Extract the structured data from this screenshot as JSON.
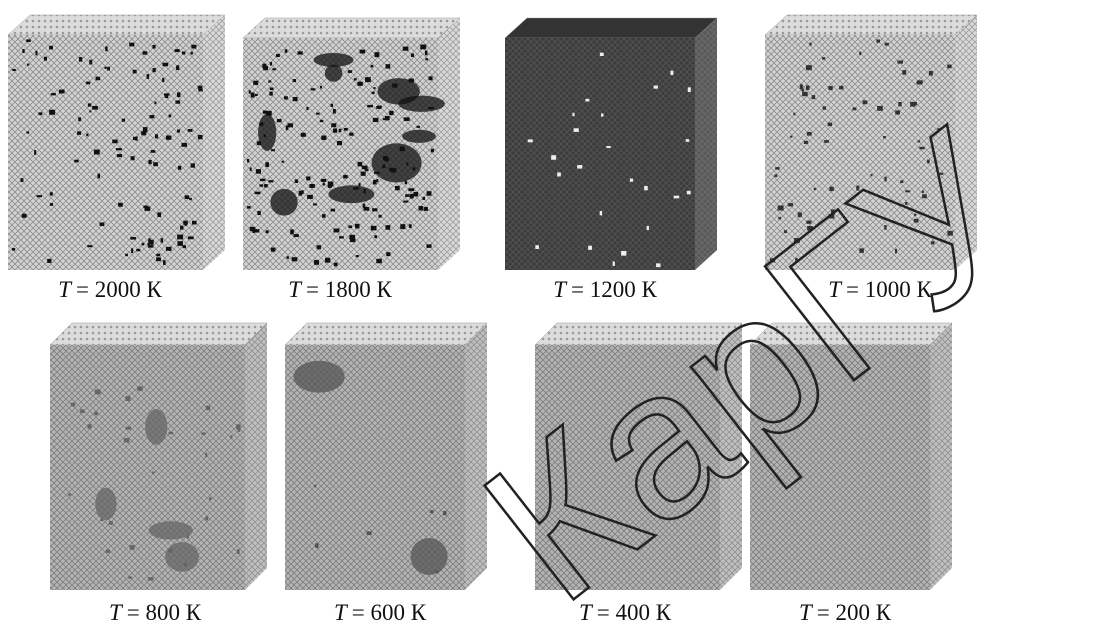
{
  "panels": [
    {
      "symbol": "T",
      "label": "= 2000 К"
    },
    {
      "symbol": "T",
      "label": "= 1800 К"
    },
    {
      "symbol": "T",
      "label": "= 1200 К"
    },
    {
      "symbol": "T",
      "label": "= 1000 К"
    },
    {
      "symbol": "T",
      "label": "= 800 К"
    },
    {
      "symbol": "T",
      "label": "= 600 К"
    },
    {
      "symbol": "T",
      "label": "= 400 К"
    },
    {
      "symbol": "T",
      "label": "= 200 К"
    }
  ],
  "watermark": "КарГУ"
}
